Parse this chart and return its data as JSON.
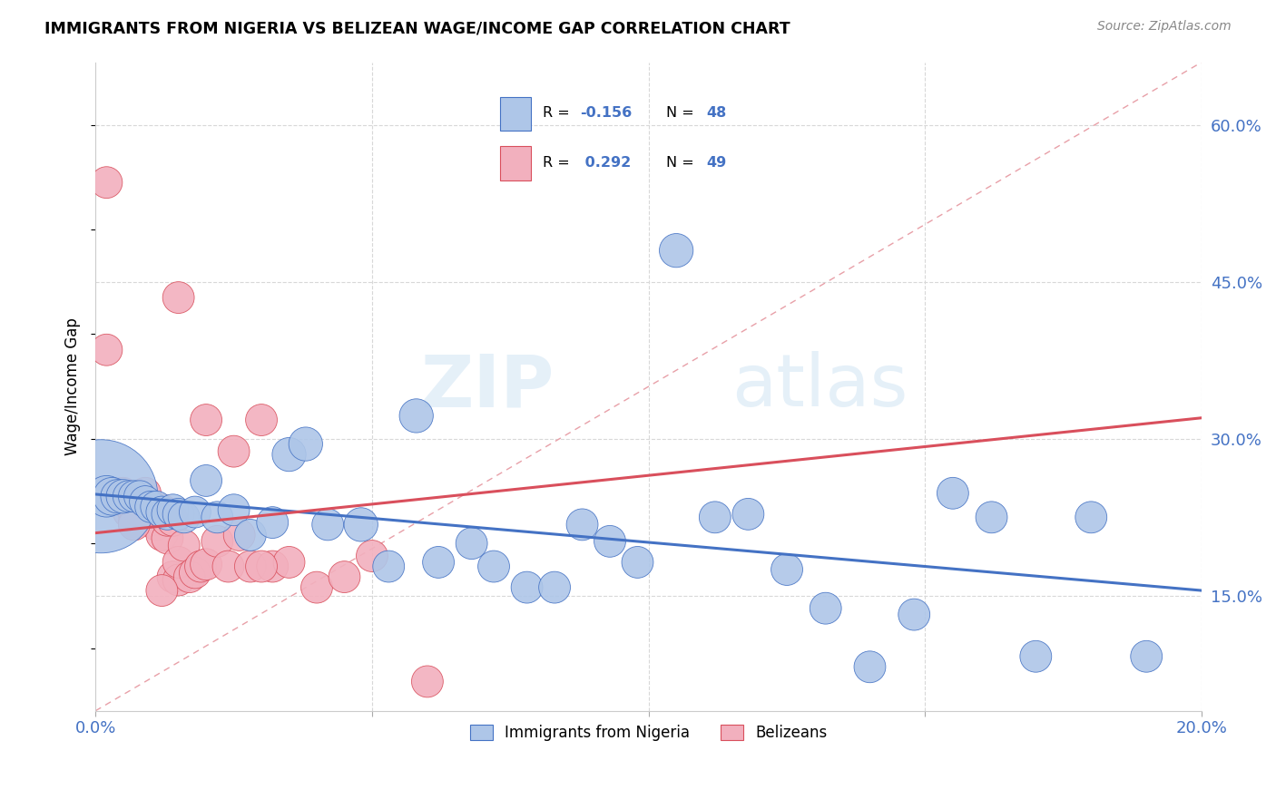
{
  "title": "IMMIGRANTS FROM NIGERIA VS BELIZEAN WAGE/INCOME GAP CORRELATION CHART",
  "source": "Source: ZipAtlas.com",
  "ylabel": "Wage/Income Gap",
  "x_min": 0.0,
  "x_max": 0.2,
  "y_min": 0.04,
  "y_max": 0.66,
  "x_tick_positions": [
    0.0,
    0.05,
    0.1,
    0.15,
    0.2
  ],
  "y_tick_vals_right": [
    0.15,
    0.3,
    0.45,
    0.6
  ],
  "y_tick_labels_right": [
    "15.0%",
    "30.0%",
    "45.0%",
    "60.0%"
  ],
  "blue_color": "#aec6e8",
  "pink_color": "#f2b0be",
  "blue_line_color": "#4472c4",
  "pink_line_color": "#d94f5c",
  "watermark_zip": "ZIP",
  "watermark_atlas": "atlas",
  "legend_items": [
    "Immigrants from Nigeria",
    "Belizeans"
  ],
  "blue_scatter_x": [
    0.001,
    0.002,
    0.003,
    0.004,
    0.005,
    0.006,
    0.007,
    0.008,
    0.009,
    0.01,
    0.011,
    0.012,
    0.013,
    0.014,
    0.015,
    0.016,
    0.018,
    0.02,
    0.022,
    0.025,
    0.028,
    0.032,
    0.035,
    0.038,
    0.042,
    0.048,
    0.053,
    0.058,
    0.062,
    0.068,
    0.072,
    0.078,
    0.083,
    0.088,
    0.093,
    0.098,
    0.105,
    0.112,
    0.118,
    0.125,
    0.132,
    0.14,
    0.148,
    0.155,
    0.162,
    0.17,
    0.18,
    0.19
  ],
  "blue_scatter_y": [
    0.245,
    0.245,
    0.245,
    0.245,
    0.245,
    0.245,
    0.245,
    0.245,
    0.24,
    0.235,
    0.235,
    0.23,
    0.228,
    0.232,
    0.228,
    0.225,
    0.23,
    0.26,
    0.225,
    0.232,
    0.208,
    0.22,
    0.285,
    0.295,
    0.218,
    0.218,
    0.178,
    0.322,
    0.182,
    0.2,
    0.178,
    0.158,
    0.158,
    0.218,
    0.202,
    0.182,
    0.48,
    0.225,
    0.228,
    0.175,
    0.138,
    0.082,
    0.132,
    0.248,
    0.225,
    0.092,
    0.225,
    0.092
  ],
  "blue_scatter_size": [
    900,
    120,
    100,
    80,
    80,
    70,
    70,
    70,
    70,
    70,
    70,
    70,
    70,
    70,
    70,
    70,
    70,
    70,
    70,
    70,
    70,
    70,
    80,
    80,
    70,
    80,
    70,
    80,
    70,
    70,
    70,
    70,
    70,
    70,
    70,
    70,
    80,
    70,
    70,
    70,
    70,
    70,
    70,
    70,
    70,
    70,
    70,
    70
  ],
  "pink_scatter_x": [
    0.001,
    0.002,
    0.003,
    0.004,
    0.005,
    0.005,
    0.006,
    0.006,
    0.007,
    0.007,
    0.008,
    0.008,
    0.009,
    0.01,
    0.01,
    0.011,
    0.011,
    0.012,
    0.012,
    0.013,
    0.013,
    0.014,
    0.014,
    0.015,
    0.015,
    0.016,
    0.017,
    0.018,
    0.019,
    0.02,
    0.022,
    0.024,
    0.026,
    0.028,
    0.03,
    0.032,
    0.035,
    0.04,
    0.045,
    0.05,
    0.002,
    0.015,
    0.02,
    0.025,
    0.03,
    0.005,
    0.007,
    0.012,
    0.06
  ],
  "pink_scatter_y": [
    0.248,
    0.385,
    0.242,
    0.242,
    0.248,
    0.24,
    0.238,
    0.23,
    0.228,
    0.22,
    0.238,
    0.23,
    0.248,
    0.228,
    0.222,
    0.218,
    0.232,
    0.232,
    0.208,
    0.205,
    0.222,
    0.222,
    0.168,
    0.165,
    0.182,
    0.198,
    0.168,
    0.172,
    0.178,
    0.18,
    0.202,
    0.178,
    0.208,
    0.178,
    0.318,
    0.178,
    0.182,
    0.158,
    0.168,
    0.188,
    0.545,
    0.435,
    0.318,
    0.288,
    0.178,
    0.242,
    0.218,
    0.155,
    0.068
  ],
  "pink_scatter_size": [
    70,
    70,
    70,
    70,
    70,
    70,
    70,
    70,
    70,
    70,
    70,
    70,
    70,
    70,
    70,
    70,
    70,
    70,
    70,
    70,
    70,
    70,
    70,
    70,
    70,
    70,
    70,
    70,
    70,
    70,
    70,
    70,
    70,
    70,
    70,
    70,
    70,
    70,
    70,
    70,
    70,
    70,
    70,
    70,
    70,
    70,
    70,
    70,
    70
  ],
  "blue_trend": [
    0.247,
    0.155
  ],
  "pink_trend": [
    0.21,
    0.32
  ],
  "diag_line_x": [
    0.0,
    0.2
  ],
  "diag_line_y": [
    0.04,
    0.66
  ]
}
